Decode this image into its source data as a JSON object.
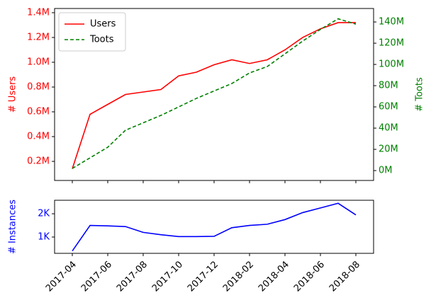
{
  "chart_data": [
    {
      "type": "line",
      "legend": "upper left",
      "ylabel": "# Users",
      "y2label": "# Toots",
      "x": [
        "2017-04",
        "2017-05",
        "2017-06",
        "2017-07",
        "2017-08",
        "2017-09",
        "2017-10",
        "2017-11",
        "2017-12",
        "2018-01",
        "2018-02",
        "2018-03",
        "2018-04",
        "2018-05",
        "2018-06",
        "2018-07",
        "2018-08"
      ],
      "xlim": [
        "2017-03",
        "2018-09"
      ],
      "series": [
        {
          "name": "Users",
          "color": "#ff0000",
          "style": "solid",
          "axis": "y",
          "values": [
            140000,
            580000,
            660000,
            740000,
            760000,
            780000,
            890000,
            920000,
            980000,
            1020000,
            990000,
            1020000,
            1100000,
            1200000,
            1270000,
            1320000,
            1320000
          ]
        },
        {
          "name": "Toots",
          "color": "#008000",
          "style": "dashed",
          "axis": "y2",
          "values": [
            2000000,
            12000000,
            22000000,
            38000000,
            45000000,
            52000000,
            60000000,
            68000000,
            75000000,
            82000000,
            92000000,
            98000000,
            110000000,
            122000000,
            133000000,
            143000000,
            138000000
          ]
        }
      ],
      "ylim": [
        46000,
        1434000
      ],
      "yticks": [
        {
          "value": 200000,
          "label": "0.2M"
        },
        {
          "value": 400000,
          "label": "0.4M"
        },
        {
          "value": 600000,
          "label": "0.6M"
        },
        {
          "value": 800000,
          "label": "0.8M"
        },
        {
          "value": 1000000,
          "label": "1.0M"
        },
        {
          "value": 1200000,
          "label": "1.2M"
        },
        {
          "value": 1400000,
          "label": "1.4M"
        }
      ],
      "y2lim": [
        -9300000,
        152700000
      ],
      "y2ticks": [
        {
          "value": 0,
          "label": "0M"
        },
        {
          "value": 20000000,
          "label": "20M"
        },
        {
          "value": 40000000,
          "label": "40M"
        },
        {
          "value": 60000000,
          "label": "60M"
        },
        {
          "value": 80000000,
          "label": "80M"
        },
        {
          "value": 100000000,
          "label": "100M"
        },
        {
          "value": 120000000,
          "label": "120M"
        },
        {
          "value": 140000000,
          "label": "140M"
        }
      ]
    },
    {
      "type": "line",
      "ylabel": "# Instances",
      "x": [
        "2017-04",
        "2017-05",
        "2017-06",
        "2017-07",
        "2017-08",
        "2017-09",
        "2017-10",
        "2017-11",
        "2017-12",
        "2018-01",
        "2018-02",
        "2018-03",
        "2018-04",
        "2018-05",
        "2018-06",
        "2018-07",
        "2018-08"
      ],
      "xlim": [
        "2017-03",
        "2018-09"
      ],
      "series": [
        {
          "name": "Instances",
          "color": "#0000ff",
          "style": "solid",
          "axis": "y",
          "values": [
            400,
            1500,
            1480,
            1450,
            1200,
            1100,
            1020,
            1020,
            1030,
            1400,
            1500,
            1550,
            1750,
            2050,
            2250,
            2450,
            1950
          ]
        }
      ],
      "ylim": [
        300,
        2580
      ],
      "yticks": [
        {
          "value": 1000,
          "label": "1K"
        },
        {
          "value": 2000,
          "label": "2K"
        }
      ],
      "xticks": [
        "2017-04",
        "2017-06",
        "2017-08",
        "2017-10",
        "2017-12",
        "2018-02",
        "2018-04",
        "2018-06",
        "2018-08"
      ]
    }
  ]
}
